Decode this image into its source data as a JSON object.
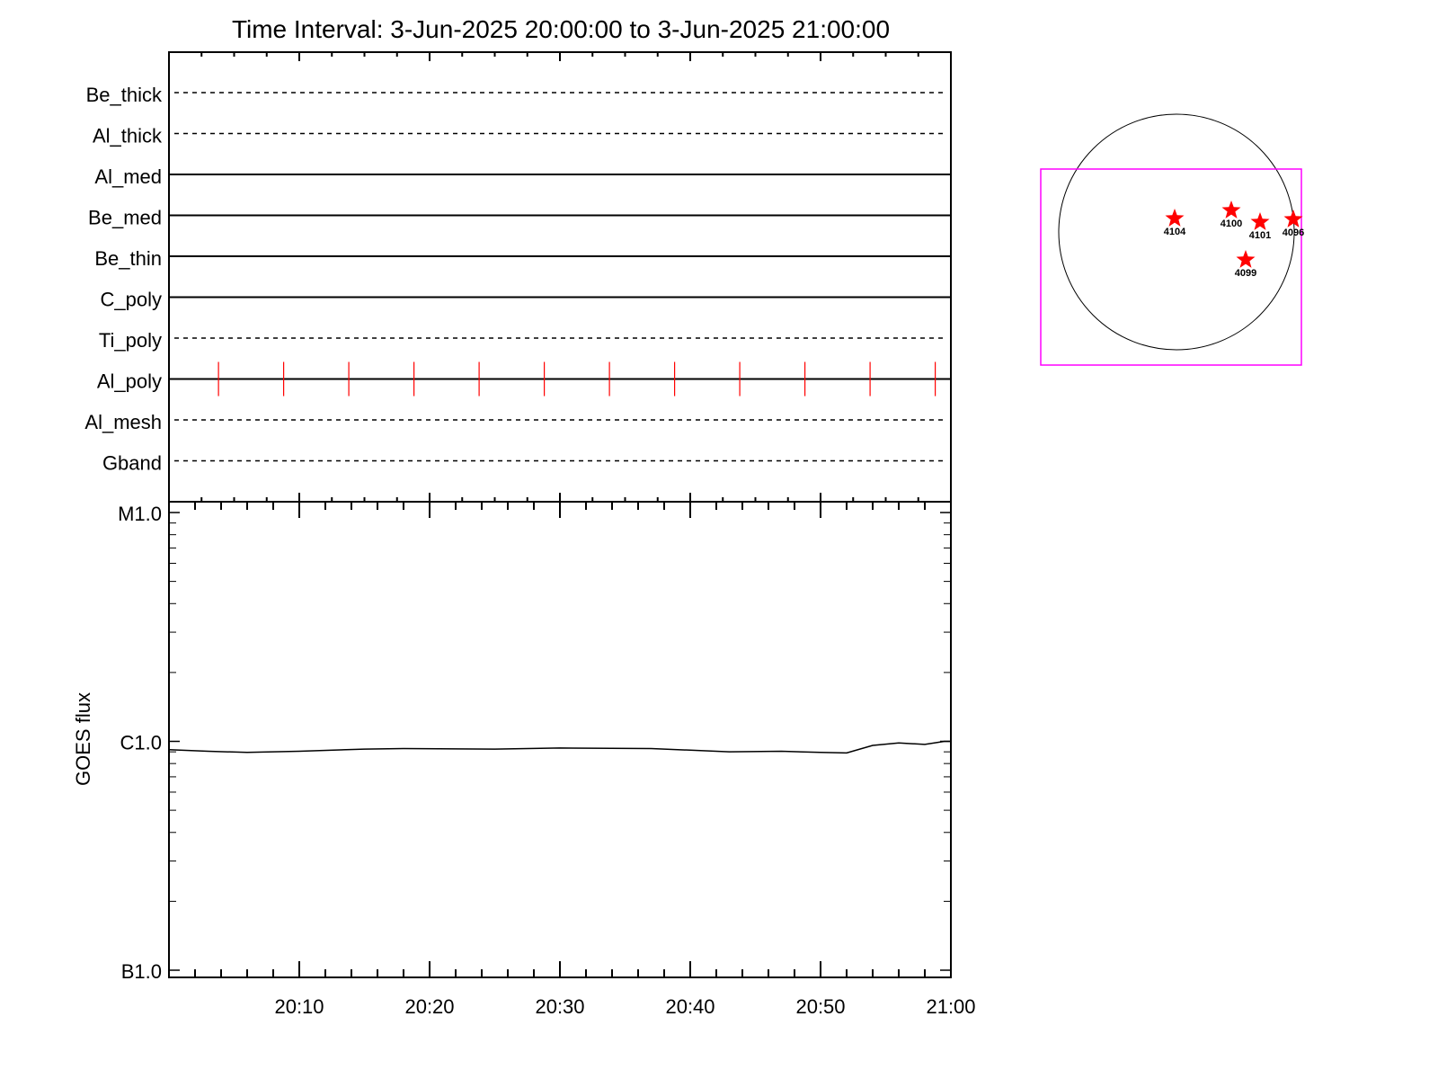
{
  "title": "Time Interval:  3-Jun-2025 20:00:00 to  3-Jun-2025 21:00:00",
  "chart_data": [
    {
      "type": "timeline",
      "rows": [
        {
          "label": "Be_thick",
          "style": "dashed"
        },
        {
          "label": "Al_thick",
          "style": "dashed"
        },
        {
          "label": "Al_med",
          "style": "solid"
        },
        {
          "label": "Be_med",
          "style": "solid"
        },
        {
          "label": "Be_thin",
          "style": "solid"
        },
        {
          "label": "C_poly",
          "style": "solid"
        },
        {
          "label": "Ti_poly",
          "style": "dashed"
        },
        {
          "label": "Al_poly",
          "style": "solid",
          "marks": [
            "20:03:48",
            "20:08:48",
            "20:13:48",
            "20:18:48",
            "20:23:48",
            "20:28:48",
            "20:33:48",
            "20:38:48",
            "20:43:48",
            "20:48:48",
            "20:53:48",
            "20:58:48"
          ]
        },
        {
          "label": "Al_mesh",
          "style": "dashed"
        },
        {
          "label": "Gband",
          "style": "dashed"
        }
      ],
      "mark_color": "#ff0000",
      "xlim": [
        "20:00",
        "21:00"
      ]
    },
    {
      "type": "line",
      "ylabel": "GOES flux",
      "yscale": "log",
      "ylim": [
        1e-07,
        1e-05
      ],
      "yticks": [
        {
          "value": 1e-07,
          "label": "B1.0"
        },
        {
          "value": 1e-06,
          "label": "C1.0"
        },
        {
          "value": 1e-05,
          "label": "M1.0"
        }
      ],
      "xticks": [
        "20:10",
        "20:20",
        "20:30",
        "20:40",
        "20:50",
        "21:00"
      ],
      "xlim": [
        "20:00",
        "21:00"
      ],
      "series": [
        {
          "x_minutes_after_20:00": [
            0,
            3,
            6,
            10,
            15,
            18,
            25,
            30,
            37,
            43,
            47,
            50,
            52,
            54,
            56,
            58,
            59.5,
            60
          ],
          "y": [
            9.2e-07,
            9.05e-07,
            8.95e-07,
            9.05e-07,
            9.25e-07,
            9.3e-07,
            9.25e-07,
            9.35e-07,
            9.3e-07,
            9e-07,
            9.05e-07,
            8.95e-07,
            8.9e-07,
            9.6e-07,
            9.85e-07,
            9.7e-07,
            1e-06,
            1e-06
          ]
        }
      ]
    }
  ],
  "sun_map": {
    "box_color": "#ff00ff",
    "star_color": "#ff0000",
    "regions": [
      {
        "label": "4104"
      },
      {
        "label": "4100"
      },
      {
        "label": "4101"
      },
      {
        "label": "4096"
      },
      {
        "label": "4099"
      }
    ]
  }
}
